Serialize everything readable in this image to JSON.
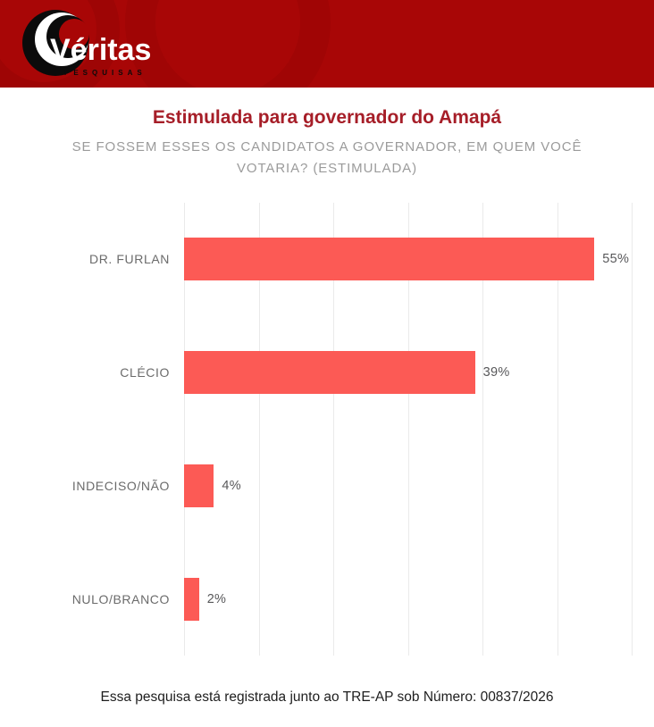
{
  "brand": {
    "wordmark": "Véritas",
    "tagline": "PESQUISAS"
  },
  "chart_data": {
    "type": "bar",
    "orientation": "horizontal",
    "title": "Estimulada para governador do Amapá",
    "subtitle_lines": [
      "SE FOSSEM ESSES OS CANDIDATOS A GOVERNADOR, EM QUEM VOCÊ",
      "VOTARIA? (ESTIMULADA)"
    ],
    "categories": [
      "DR. FURLAN",
      "CLÉCIO",
      "INDECISO/NÃO",
      "NULO/BRANCO"
    ],
    "values": [
      55,
      39,
      4,
      2
    ],
    "value_labels": [
      "55%",
      "39%",
      "4%",
      "2%"
    ],
    "xlabel": "",
    "ylabel": "",
    "xlim": [
      0,
      60
    ],
    "gridline_interval": 10,
    "grid": true,
    "legend": false,
    "bar_color": "#FC5A55"
  },
  "footer": {
    "registration_text": "Essa pesquisa está registrada junto ao TRE-AP sob Número: 00837/2026"
  },
  "colors": {
    "header_background": "#A80606",
    "title_text": "#A61E28",
    "subtitle_text": "#9B9B9B",
    "category_label_text": "#6B6B6B",
    "value_label_text": "#58585A",
    "bar_fill": "#FC5A55",
    "gridline": "#EAEAEA",
    "footer_text": "#1E1E1E",
    "logo_black": "#0B0B0B",
    "logo_white": "#FFFFFF"
  }
}
